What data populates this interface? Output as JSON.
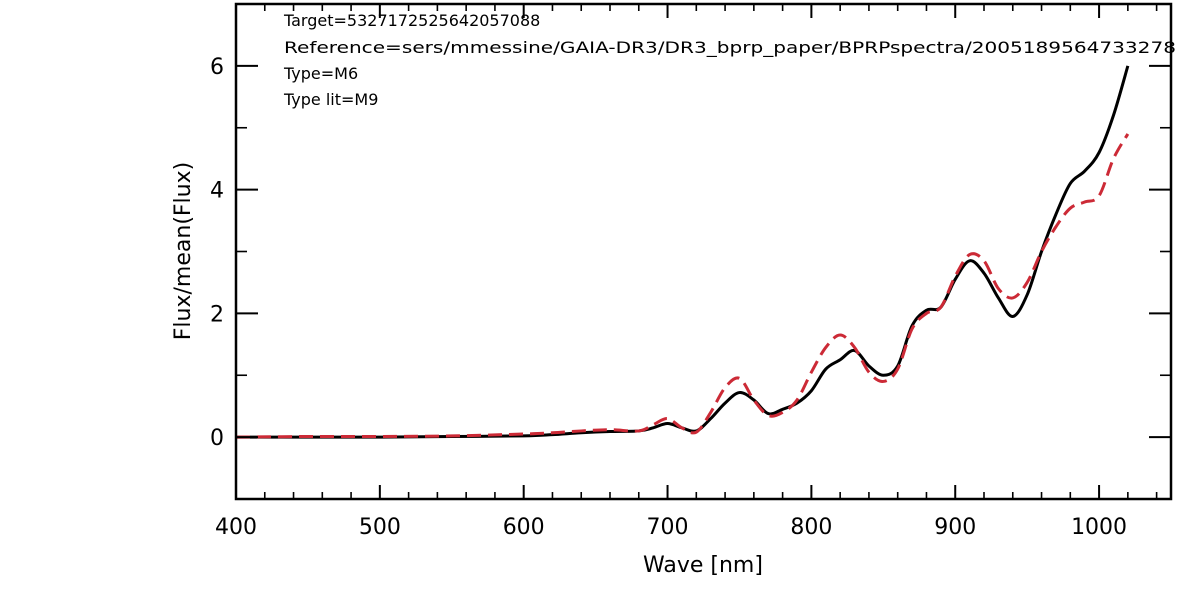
{
  "chart_data": {
    "type": "line",
    "title": "",
    "xlabel": "Wave [nm]",
    "ylabel": "Flux/mean(Flux)",
    "xlim": [
      400,
      1050
    ],
    "ylim": [
      -1,
      7
    ],
    "xticks": [
      400,
      500,
      600,
      700,
      800,
      900,
      1000
    ],
    "yticks": [
      0,
      2,
      4,
      6
    ],
    "grid": false,
    "annotations": [
      "Target=5327172525642057088",
      "Reference=sers/mmessine/GAIA-DR3/DR3_bprp_paper/BPRPspectra/2005189564733278",
      "Type=M6",
      "Type lit=M9"
    ],
    "series": [
      {
        "name": "",
        "color": "#000000",
        "style": "solid",
        "x": [
          400,
          450,
          500,
          550,
          600,
          620,
          640,
          660,
          680,
          690,
          700,
          710,
          720,
          730,
          740,
          750,
          760,
          770,
          780,
          790,
          800,
          810,
          820,
          830,
          840,
          850,
          860,
          870,
          880,
          890,
          900,
          910,
          920,
          930,
          940,
          950,
          960,
          970,
          980,
          990,
          1000,
          1010,
          1020
        ],
        "y": [
          0.0,
          0.0,
          0.0,
          0.01,
          0.02,
          0.04,
          0.07,
          0.09,
          0.1,
          0.15,
          0.22,
          0.15,
          0.1,
          0.3,
          0.55,
          0.72,
          0.6,
          0.38,
          0.45,
          0.55,
          0.75,
          1.1,
          1.25,
          1.4,
          1.15,
          1.0,
          1.15,
          1.8,
          2.05,
          2.1,
          2.55,
          2.85,
          2.65,
          2.25,
          1.95,
          2.3,
          3.0,
          3.6,
          4.1,
          4.3,
          4.6,
          5.2,
          6.0
        ]
      },
      {
        "name": "",
        "color": "#cc2a36",
        "style": "dashed",
        "x": [
          400,
          450,
          500,
          550,
          600,
          620,
          640,
          660,
          680,
          690,
          700,
          710,
          720,
          730,
          740,
          750,
          760,
          770,
          780,
          790,
          800,
          810,
          820,
          830,
          840,
          850,
          860,
          870,
          880,
          890,
          900,
          910,
          920,
          930,
          940,
          950,
          960,
          970,
          980,
          990,
          1000,
          1010,
          1020
        ],
        "y": [
          0.0,
          0.01,
          0.01,
          0.02,
          0.05,
          0.07,
          0.1,
          0.12,
          0.1,
          0.2,
          0.3,
          0.15,
          0.08,
          0.4,
          0.8,
          0.95,
          0.6,
          0.35,
          0.4,
          0.6,
          1.05,
          1.45,
          1.65,
          1.45,
          1.05,
          0.9,
          1.1,
          1.75,
          2.0,
          2.1,
          2.6,
          2.95,
          2.85,
          2.4,
          2.25,
          2.5,
          3.0,
          3.4,
          3.7,
          3.8,
          3.9,
          4.5,
          4.9
        ]
      }
    ]
  }
}
